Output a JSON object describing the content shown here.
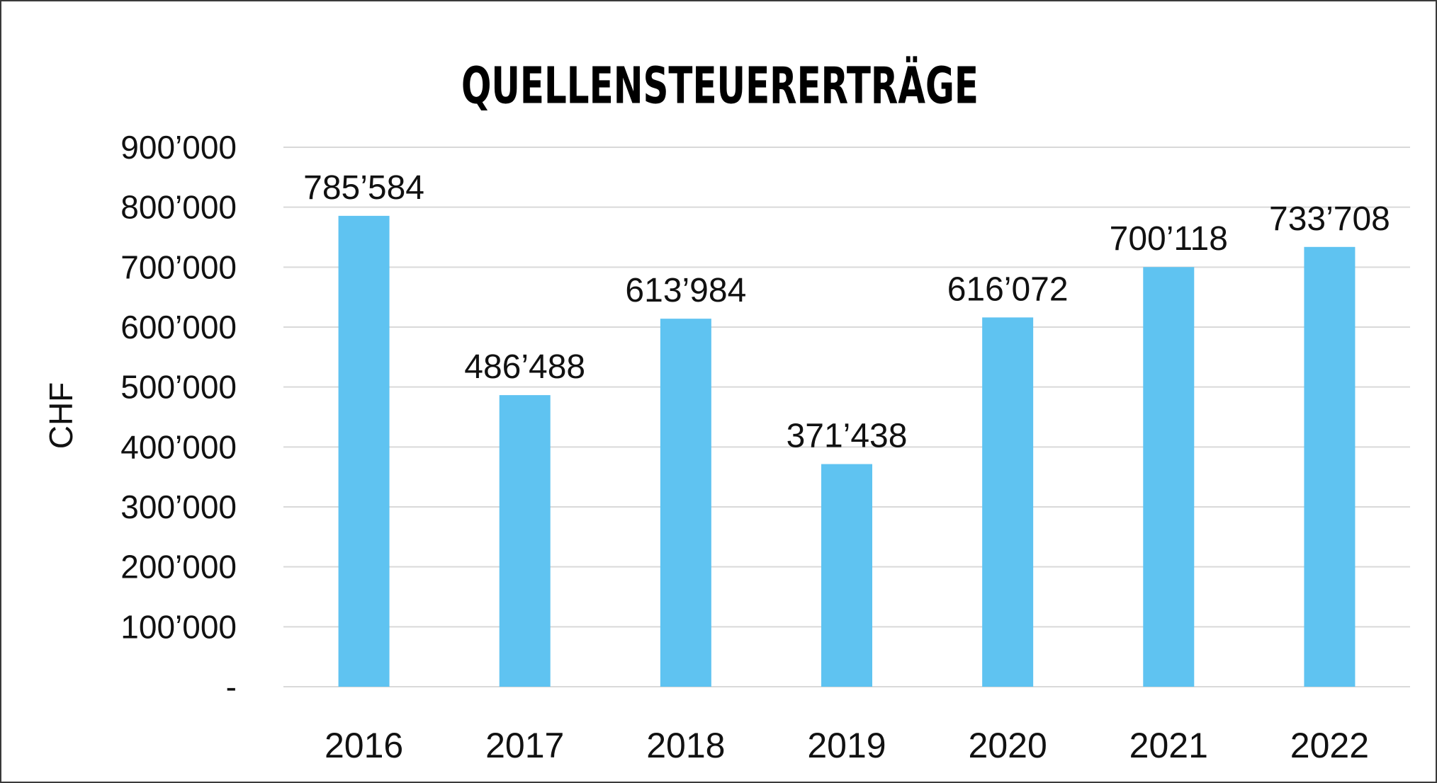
{
  "chart_data": {
    "type": "bar",
    "title": "QUELLENSTEUERERTRÄGE",
    "xlabel": "",
    "ylabel": "CHF",
    "categories": [
      "2016",
      "2017",
      "2018",
      "2019",
      "2020",
      "2021",
      "2022"
    ],
    "values": [
      785584,
      486488,
      613984,
      371438,
      616072,
      700118,
      733708
    ],
    "value_labels": [
      "785’584",
      "486’488",
      "613’984",
      "371’438",
      "616’072",
      "700’118",
      "733’708"
    ],
    "ylim": [
      0,
      900000
    ],
    "yticks": [
      0,
      100000,
      200000,
      300000,
      400000,
      500000,
      600000,
      700000,
      800000,
      900000
    ],
    "ytick_labels": [
      "-",
      "100’000",
      "200’000",
      "300’000",
      "400’000",
      "500’000",
      "600’000",
      "700’000",
      "800’000",
      "900’000"
    ],
    "grid": true,
    "legend": "none",
    "bar_color": "#5fc3f1",
    "grid_color": "#d9d9d9"
  }
}
